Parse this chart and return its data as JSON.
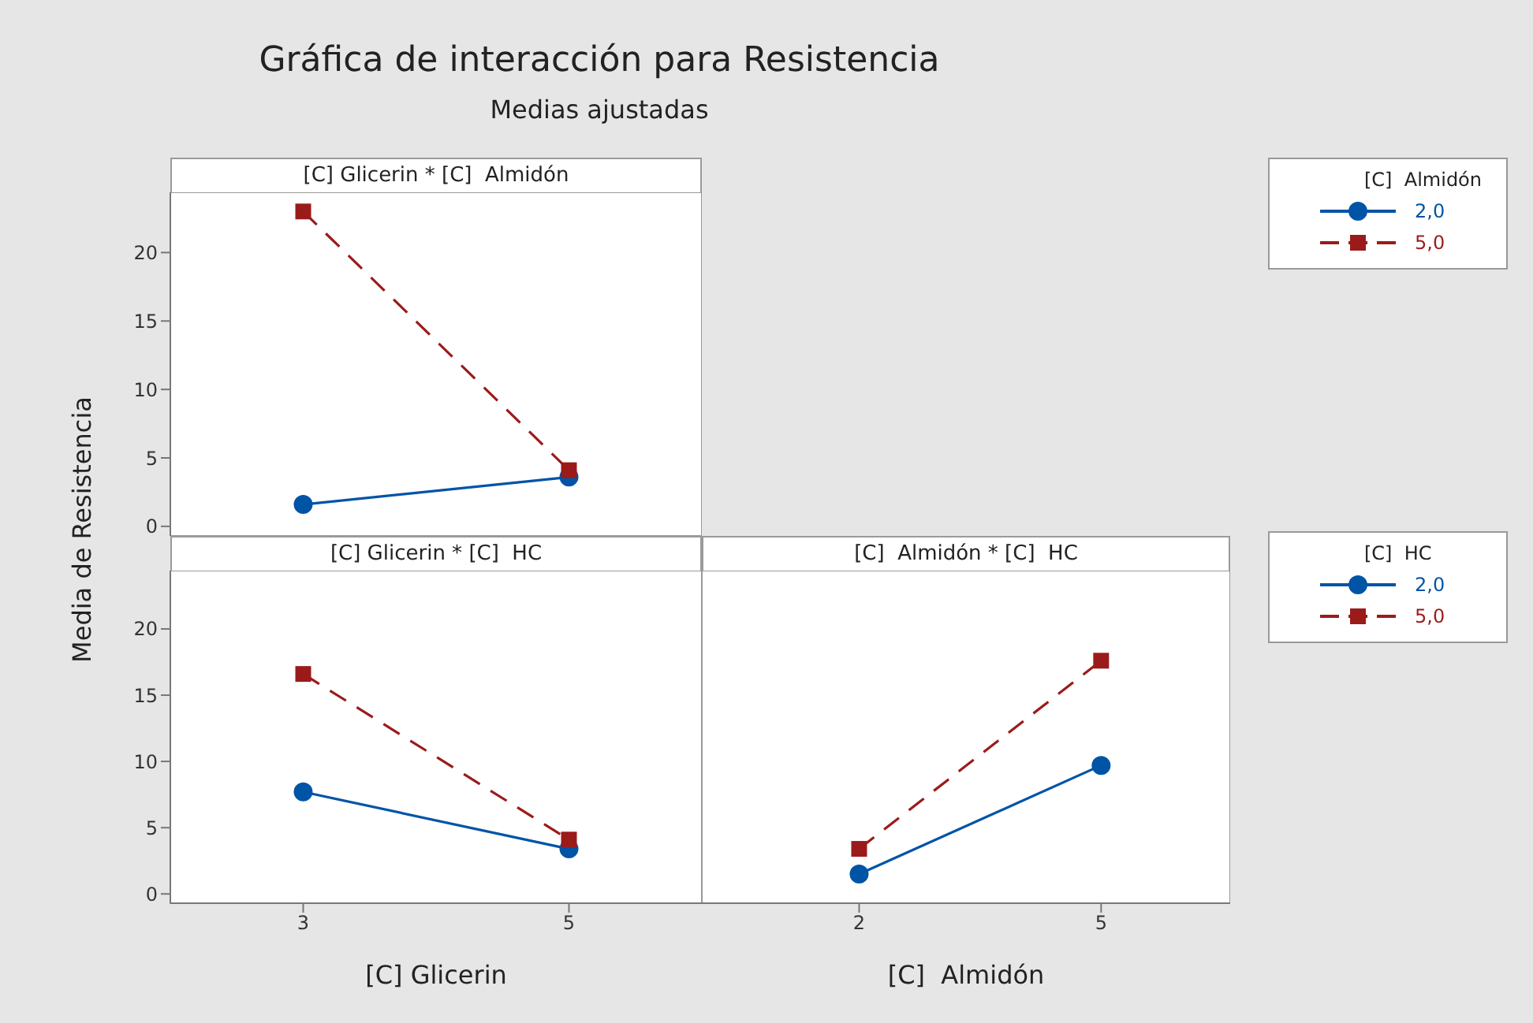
{
  "chart_data": [
    {
      "type": "line",
      "title": "Gráfica de interacción para Resistencia",
      "subtitle": "Medias ajustadas",
      "annotations": [
        "[C] Glicerin * [C]  Almidón"
      ],
      "ylabel": "Media de Resistencia",
      "x": [
        3,
        5
      ],
      "xlim": [
        2,
        6
      ],
      "xticks": [
        3,
        5
      ],
      "ylim": [
        -0.7,
        24.4
      ],
      "yticks": [
        0,
        5,
        10,
        15,
        20
      ],
      "tick_labels": "y",
      "legend": "right",
      "legend_title": "[C]  Almidón",
      "series": [
        {
          "name": "2,0",
          "color": "#0054a6",
          "values": [
            1.6,
            3.6
          ],
          "marker": "circle",
          "line_style": "solid"
        },
        {
          "name": "5,0",
          "color": "#9b1b1b",
          "values": [
            23.0,
            4.1
          ],
          "marker": "square",
          "line_style": "dashed"
        }
      ]
    },
    {
      "type": "line",
      "title": "[C] Glicerin * [C]  HC",
      "xlabel": "[C] Glicerin",
      "x": [
        3,
        5
      ],
      "xlim": [
        2,
        6
      ],
      "xticks": [
        3,
        5
      ],
      "ylim": [
        -0.7,
        24.4
      ],
      "yticks": [
        0,
        5,
        10,
        15,
        20
      ],
      "series": [
        {
          "color": "#0054a6",
          "values": [
            7.7,
            3.4
          ],
          "marker": "circle",
          "line_style": "solid"
        },
        {
          "color": "#9b1b1b",
          "values": [
            16.6,
            4.1
          ],
          "marker": "square",
          "line_style": "dashed"
        }
      ]
    },
    {
      "type": "line",
      "title": "[C]  Almidón * [C]  HC",
      "xlabel": "[C]  Almidón",
      "x": [
        2,
        5
      ],
      "xlim": [
        0.05,
        6.6
      ],
      "xticks": [
        2,
        5
      ],
      "ylim": [
        -0.7,
        24.4
      ],
      "yticks": [
        0,
        5,
        10,
        15,
        20
      ],
      "tick_labels": "x",
      "legend": "right",
      "legend_title": "[C]  HC",
      "series": [
        {
          "name": "2,0",
          "color": "#0054a6",
          "values": [
            1.5,
            9.7
          ],
          "marker": "circle",
          "line_style": "solid"
        },
        {
          "name": "5,0",
          "color": "#9b1b1b",
          "values": [
            3.4,
            17.6
          ],
          "marker": "square",
          "line_style": "dashed"
        }
      ]
    }
  ]
}
